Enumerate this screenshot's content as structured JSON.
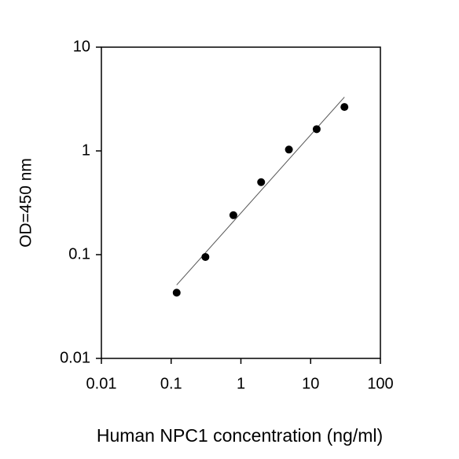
{
  "chart_data": {
    "type": "scatter",
    "x_label": "Human NPC1 concentration (ng/ml)",
    "y_label": "OD=450 nm",
    "x": [
      0.12,
      0.31,
      0.78,
      1.95,
      4.88,
      12.2,
      30.5
    ],
    "values": [
      0.043,
      0.095,
      0.24,
      0.5,
      1.03,
      1.62,
      2.65
    ],
    "color": "#000000",
    "trendline": {
      "x": [
        0.12,
        30.5
      ],
      "values": [
        0.051,
        3.3
      ],
      "color": "#555555"
    },
    "xlim": [
      0.01,
      100
    ],
    "ylim": [
      0.01,
      10
    ],
    "xticks": [
      0.01,
      0.1,
      1,
      10,
      100
    ],
    "yticks": [
      0.01,
      0.1,
      1,
      10
    ],
    "xscale": "log",
    "yscale": "log",
    "grid": false
  }
}
